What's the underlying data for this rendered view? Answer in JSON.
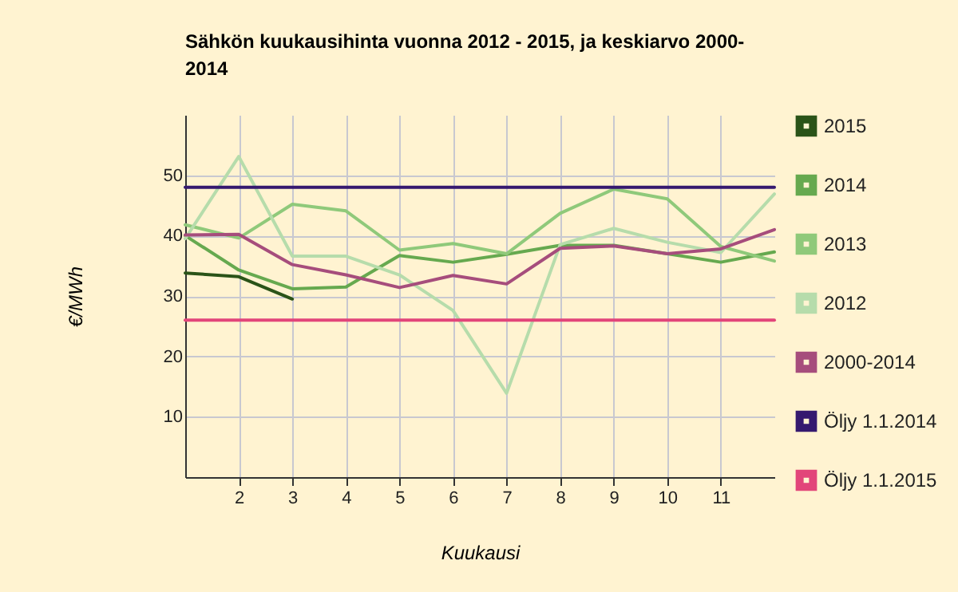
{
  "chart_data": {
    "type": "line",
    "title": "Sähkön kuukausihinta vuonna 2012 - 2015, ja keskiarvo 2000-2014",
    "xlabel": "Kuukausi",
    "ylabel": "€/MWh",
    "x": [
      1,
      2,
      3,
      4,
      5,
      6,
      7,
      8,
      9,
      10,
      11,
      12
    ],
    "xlim": [
      1,
      12
    ],
    "xticks": [
      2,
      3,
      4,
      5,
      6,
      7,
      8,
      9,
      10,
      11
    ],
    "ylim": [
      0,
      60
    ],
    "yticks": [
      10,
      20,
      30,
      40,
      50
    ],
    "grid": true,
    "legend": "right",
    "series": [
      {
        "name": "2015",
        "color": "#2a5318",
        "values": [
          33.8,
          33.2,
          29.5,
          null,
          null,
          null,
          null,
          null,
          null,
          null,
          null,
          null
        ]
      },
      {
        "name": "2014",
        "color": "#66a94f",
        "values": [
          40.0,
          34.3,
          31.2,
          31.5,
          36.7,
          35.6,
          36.9,
          38.4,
          38.4,
          37.0,
          35.6,
          37.3
        ]
      },
      {
        "name": "2013",
        "color": "#8fc97a",
        "values": [
          41.8,
          39.6,
          45.2,
          44.1,
          37.6,
          38.7,
          37.0,
          43.7,
          47.7,
          46.1,
          38.2,
          35.8
        ]
      },
      {
        "name": "2012",
        "color": "#b6dcab",
        "values": [
          39.5,
          53.1,
          36.6,
          36.6,
          33.5,
          27.6,
          13.9,
          38.5,
          41.2,
          38.9,
          37.2,
          46.9
        ]
      },
      {
        "name": "2000-2014",
        "color": "#a64d7c",
        "values": [
          40.1,
          40.2,
          35.2,
          33.5,
          31.4,
          33.4,
          32.0,
          37.9,
          38.3,
          37.0,
          37.8,
          41.0
        ]
      },
      {
        "name": "Öljy 1.1.2014",
        "color": "#35196f",
        "values": [
          48,
          48,
          48,
          48,
          48,
          48,
          48,
          48,
          48,
          48,
          48,
          48
        ]
      },
      {
        "name": "Öljy 1.1.2015",
        "color": "#e2457a",
        "values": [
          26,
          26,
          26,
          26,
          26,
          26,
          26,
          26,
          26,
          26,
          26,
          26
        ]
      }
    ]
  }
}
